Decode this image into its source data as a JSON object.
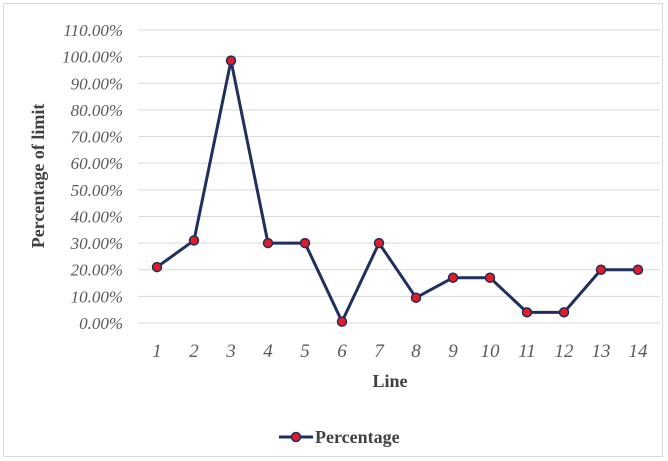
{
  "chart_data": {
    "type": "line",
    "xlabel": "Line",
    "ylabel": "Percentage of limit",
    "ylim": [
      0,
      110
    ],
    "y_tick_labels": [
      "0.00%",
      "10.00%",
      "20.00%",
      "30.00%",
      "40.00%",
      "50.00%",
      "60.00%",
      "70.00%",
      "80.00%",
      "90.00%",
      "100.00%",
      "110.00%"
    ],
    "y_ticks": [
      0,
      10,
      20,
      30,
      40,
      50,
      60,
      70,
      80,
      90,
      100,
      110
    ],
    "categories": [
      "1",
      "2",
      "3",
      "4",
      "5",
      "6",
      "7",
      "8",
      "9",
      "10",
      "11",
      "12",
      "13",
      "14"
    ],
    "series": [
      {
        "name": "Percentage",
        "values": [
          21,
          31,
          98.5,
          30,
          30,
          0.5,
          30,
          9.5,
          17,
          17,
          4,
          4,
          20,
          20
        ],
        "line_color": "#1f2f5e",
        "marker_color": "#e31b23"
      }
    ],
    "grid": true,
    "legend_position": "bottom"
  }
}
